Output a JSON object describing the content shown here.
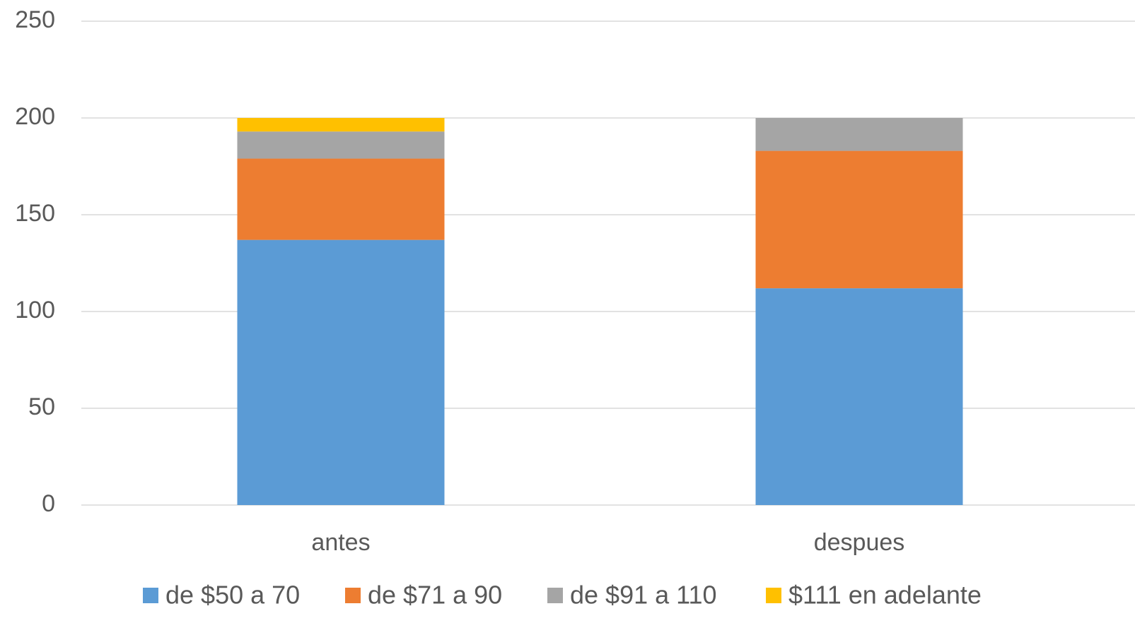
{
  "chart_data": {
    "type": "stacked_bar",
    "categories": [
      "antes",
      "despues"
    ],
    "series": [
      {
        "name": "de $50 a 70",
        "color": "#5b9bd5",
        "values": [
          137,
          112
        ]
      },
      {
        "name": "de $71 a 90",
        "color": "#ed7d31",
        "values": [
          42,
          71
        ]
      },
      {
        "name": "de $91 a 110",
        "color": "#a5a5a5",
        "values": [
          14,
          17
        ]
      },
      {
        "name": "$111 en adelante",
        "color": "#ffc000",
        "values": [
          7,
          0
        ]
      }
    ],
    "ylim": [
      0,
      250
    ],
    "yticks": [
      0,
      50,
      100,
      150,
      200,
      250
    ],
    "grid": true,
    "legend": "bottom"
  }
}
